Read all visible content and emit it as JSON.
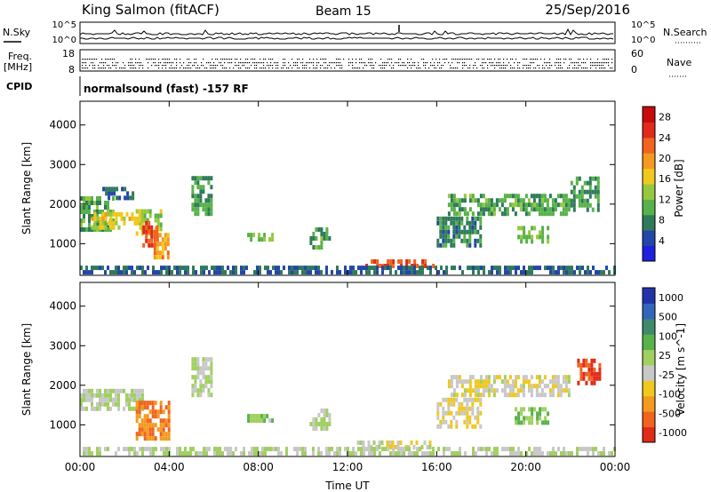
{
  "header": {
    "station": "King Salmon (fitACF)",
    "beam": "Beam 15",
    "date": "25/Sep/2016"
  },
  "strip_panels": {
    "left_labels": [
      "N.Sky",
      "Freq.",
      "[MHz]",
      "CPID"
    ],
    "right_labels": [
      "N.Search",
      "Nave"
    ],
    "noise_left_ticks": [
      "10^5",
      "10^0"
    ],
    "noise_right_ticks": [
      "10^5",
      "10^0"
    ],
    "freq_ticks": [
      "18",
      "8"
    ],
    "nave_ticks": [
      "60",
      "0"
    ],
    "cpid_text": "normalsound (fast) -157 RF"
  },
  "colors": {
    "power_scale": [
      "#1f1fe0",
      "#2346a8",
      "#2e7a5a",
      "#58b24a",
      "#96c83e",
      "#f0c81e",
      "#f49a1e",
      "#f0641e",
      "#e02a1a",
      "#c80a0a"
    ],
    "velocity_scale": [
      "#2233aa",
      "#3366bb",
      "#3f8a6a",
      "#58b24a",
      "#a0d060",
      "#c8c8c8",
      "#f0c81e",
      "#f49a1e",
      "#f0641e",
      "#e02a1a"
    ]
  },
  "chart_data": [
    {
      "type": "heatmap",
      "name": "power",
      "xlabel": "Time UT",
      "ylabel": "Slant Range [km]",
      "xlim": [
        0,
        24
      ],
      "ylim": [
        200,
        4600
      ],
      "x_ticks": [
        "00:00",
        "04:00",
        "08:00",
        "12:00",
        "16:00",
        "20:00",
        "00:00"
      ],
      "y_ticks": [
        1000,
        2000,
        3000,
        4000
      ],
      "colorbar_label": "Power [dB]",
      "colorbar_ticks": [
        "4",
        "8",
        "12",
        "16",
        "20",
        "24",
        "28"
      ],
      "colorbar_range": [
        0,
        30
      ],
      "regions": [
        {
          "t0": 0.0,
          "t1": 1.5,
          "r0": 1300,
          "r1": 2100,
          "value": 10
        },
        {
          "t0": 0.5,
          "t1": 2.8,
          "r0": 1350,
          "r1": 1750,
          "value": 16
        },
        {
          "t0": 2.5,
          "t1": 3.6,
          "r0": 1200,
          "r1": 1800,
          "value": 14
        },
        {
          "t0": 2.8,
          "t1": 3.5,
          "r0": 900,
          "r1": 1500,
          "value": 24
        },
        {
          "t0": 3.3,
          "t1": 4.0,
          "r0": 600,
          "r1": 1200,
          "value": 20
        },
        {
          "t0": 1.0,
          "t1": 2.4,
          "r0": 2100,
          "r1": 2400,
          "value": 6
        },
        {
          "t0": 5.0,
          "t1": 5.9,
          "r0": 1700,
          "r1": 2600,
          "value": 9
        },
        {
          "t0": 7.5,
          "t1": 8.6,
          "r0": 1050,
          "r1": 1250,
          "value": 12
        },
        {
          "t0": 10.3,
          "t1": 11.2,
          "r0": 850,
          "r1": 1300,
          "value": 10
        },
        {
          "t0": 12.8,
          "t1": 15.8,
          "r0": 380,
          "r1": 540,
          "value": 24
        },
        {
          "t0": 16.0,
          "t1": 18.0,
          "r0": 900,
          "r1": 1600,
          "value": 8
        },
        {
          "t0": 16.5,
          "t1": 22.0,
          "r0": 1700,
          "r1": 2200,
          "value": 10
        },
        {
          "t0": 19.5,
          "t1": 21.0,
          "r0": 1000,
          "r1": 1400,
          "value": 12
        },
        {
          "t0": 22.0,
          "t1": 23.3,
          "r0": 1800,
          "r1": 2600,
          "value": 9
        },
        {
          "t0": 0.0,
          "t1": 24.0,
          "r0": 220,
          "r1": 360,
          "value": 6
        }
      ]
    },
    {
      "type": "heatmap",
      "name": "velocity",
      "xlabel": "Time UT",
      "ylabel": "Slant Range [km]",
      "xlim": [
        0,
        24
      ],
      "ylim": [
        200,
        4600
      ],
      "x_ticks": [
        "00:00",
        "04:00",
        "08:00",
        "12:00",
        "16:00",
        "20:00",
        "00:00"
      ],
      "y_ticks": [
        1000,
        2000,
        3000,
        4000
      ],
      "colorbar_label": "Velocity [m s^-1]",
      "colorbar_ticks": [
        "1000",
        "500",
        "100",
        "25",
        "-25",
        "-100",
        "-500",
        "-1000"
      ],
      "colorbar_range": [
        -1000,
        1000
      ],
      "regions": [
        {
          "t0": 0.0,
          "t1": 2.8,
          "r0": 1350,
          "r1": 1800,
          "value": 0
        },
        {
          "t0": 2.5,
          "t1": 4.0,
          "r0": 600,
          "r1": 1500,
          "value": -600
        },
        {
          "t0": 5.0,
          "t1": 5.9,
          "r0": 1700,
          "r1": 2600,
          "value": 0
        },
        {
          "t0": 7.5,
          "t1": 8.6,
          "r0": 1050,
          "r1": 1250,
          "value": 150
        },
        {
          "t0": 10.3,
          "t1": 11.2,
          "r0": 850,
          "r1": 1300,
          "value": 0
        },
        {
          "t0": 12.3,
          "t1": 15.8,
          "r0": 380,
          "r1": 540,
          "value": -100
        },
        {
          "t0": 16.0,
          "t1": 18.0,
          "r0": 900,
          "r1": 1600,
          "value": -200
        },
        {
          "t0": 16.5,
          "t1": 22.0,
          "r0": 1700,
          "r1": 2200,
          "value": -150
        },
        {
          "t0": 19.5,
          "t1": 21.0,
          "r0": 1000,
          "r1": 1400,
          "value": 200
        },
        {
          "t0": 22.3,
          "t1": 23.3,
          "r0": 2000,
          "r1": 2600,
          "value": -800
        },
        {
          "t0": 0.0,
          "t1": 24.0,
          "r0": 220,
          "r1": 360,
          "value": 0
        }
      ]
    }
  ]
}
